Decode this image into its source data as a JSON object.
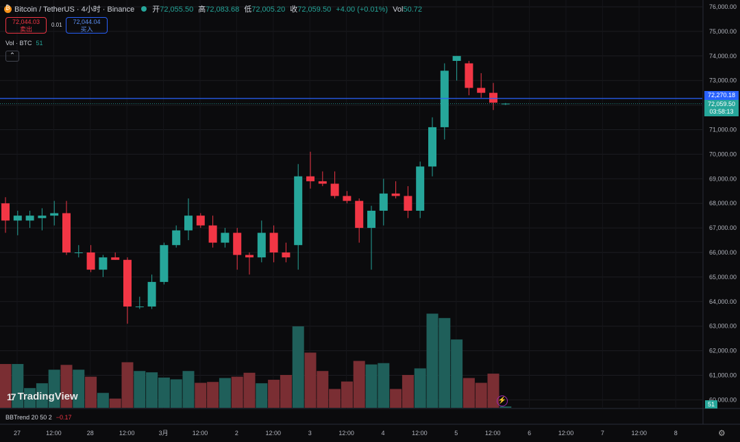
{
  "header": {
    "symbol": "Bitcoin / TetherUS · 4小时 · Binance",
    "ohlc": [
      {
        "k": "开",
        "v": "72,055.50"
      },
      {
        "k": "高",
        "v": "72,083.68"
      },
      {
        "k": "低",
        "v": "72,005.20"
      },
      {
        "k": "收",
        "v": "72,059.50"
      }
    ],
    "change": "+4.00 (+0.01%)",
    "vol_key": "Vol",
    "vol_value": "50.72"
  },
  "trade": {
    "sell_price": "72,044.03",
    "sell_label": "卖出",
    "spread": "0.01",
    "buy_price": "72,044.04",
    "buy_label": "买入"
  },
  "volume_pane": {
    "label": "Vol · BTC",
    "value": "51"
  },
  "collapse_icon": "chevron-up-icon",
  "watermark": "TradingView",
  "indicator": {
    "label": "BBTrend 20 50 2",
    "value": "−0.17"
  },
  "price_tags": {
    "line_price": "72,270.18",
    "last_price": "72,059.50",
    "countdown": "03:58:13"
  },
  "vol_badge": "51",
  "colors": {
    "up": "#26a69a",
    "down": "#f23645",
    "line": "#2962ff",
    "bg": "#0b0b0d"
  },
  "chart_data": {
    "type": "candlestick",
    "price_axis": [
      "76,000.00",
      "75,000.00",
      "74,000.00",
      "73,000.00",
      "72,000.00",
      "71,000.00",
      "70,000.00",
      "69,000.00",
      "68,000.00",
      "67,000.00",
      "66,000.00",
      "65,000.00",
      "64,000.00",
      "63,000.00",
      "62,000.00",
      "61,000.00",
      "60,000.00"
    ],
    "ylim": [
      59950,
      76000
    ],
    "time_axis": [
      "27",
      "12:00",
      "28",
      "12:00",
      "3月",
      "12:00",
      "2",
      "12:00",
      "3",
      "12:00",
      "4",
      "12:00",
      "5",
      "12:00",
      "6",
      "12:00",
      "7",
      "12:00",
      "8"
    ],
    "horizontal_line": 72270.18,
    "candles": [
      [
        68000,
        68250,
        66800,
        67300
      ],
      [
        67300,
        67700,
        66700,
        67500
      ],
      [
        67300,
        67700,
        67000,
        67500
      ],
      [
        67400,
        67800,
        66900,
        67500
      ],
      [
        67500,
        68100,
        67100,
        67600
      ],
      [
        67600,
        68100,
        65900,
        66000
      ],
      [
        66000,
        66300,
        65800,
        66000
      ],
      [
        66000,
        66300,
        65200,
        65300
      ],
      [
        65300,
        65900,
        65000,
        65800
      ],
      [
        65800,
        66000,
        65700,
        65700
      ],
      [
        65700,
        65800,
        63100,
        63800
      ],
      [
        63800,
        64200,
        63700,
        63800
      ],
      [
        63800,
        65100,
        63700,
        64800
      ],
      [
        64800,
        66400,
        64700,
        66300
      ],
      [
        66300,
        67100,
        66200,
        66900
      ],
      [
        66900,
        68200,
        66500,
        67500
      ],
      [
        67500,
        67600,
        67000,
        67100
      ],
      [
        67100,
        67500,
        66200,
        66400
      ],
      [
        66400,
        67000,
        66200,
        66800
      ],
      [
        66800,
        67000,
        65300,
        65900
      ],
      [
        65900,
        66000,
        65100,
        65800
      ],
      [
        65800,
        67300,
        65600,
        66800
      ],
      [
        66800,
        67100,
        65600,
        66000
      ],
      [
        66000,
        66400,
        65600,
        65800
      ],
      [
        66300,
        69600,
        65300,
        69100
      ],
      [
        69100,
        70100,
        68600,
        68900
      ],
      [
        68900,
        69300,
        68700,
        68800
      ],
      [
        68800,
        69300,
        68200,
        68300
      ],
      [
        68300,
        68500,
        68000,
        68100
      ],
      [
        68100,
        68200,
        66400,
        67000
      ],
      [
        67000,
        67900,
        65300,
        67700
      ],
      [
        67700,
        69000,
        67100,
        68400
      ],
      [
        68400,
        68900,
        68200,
        68300
      ],
      [
        68300,
        68700,
        67400,
        67700
      ],
      [
        67700,
        69700,
        67400,
        69500
      ],
      [
        69500,
        71500,
        69100,
        71100
      ],
      [
        71100,
        73700,
        70600,
        73400
      ],
      [
        73800,
        74000,
        73000,
        74000
      ],
      [
        73700,
        73800,
        72400,
        72700
      ],
      [
        72700,
        73300,
        72300,
        72500
      ],
      [
        72500,
        72900,
        71800,
        72100
      ],
      [
        72055.5,
        72083.68,
        72005.2,
        72059.5
      ]
    ],
    "volumes": [
      1.0,
      1.0,
      0.45,
      0.56,
      0.87,
      0.98,
      0.87,
      0.71,
      0.34,
      0.21,
      1.04,
      0.84,
      0.81,
      0.69,
      0.65,
      0.84,
      0.57,
      0.59,
      0.68,
      0.71,
      0.8,
      0.56,
      0.64,
      0.75,
      1.86,
      1.26,
      0.84,
      0.43,
      0.6,
      1.07,
      0.99,
      1.02,
      0.43,
      0.75,
      0.9,
      2.15,
      2.05,
      1.56,
      0.68,
      0.57,
      0.78,
      0.03
    ]
  }
}
